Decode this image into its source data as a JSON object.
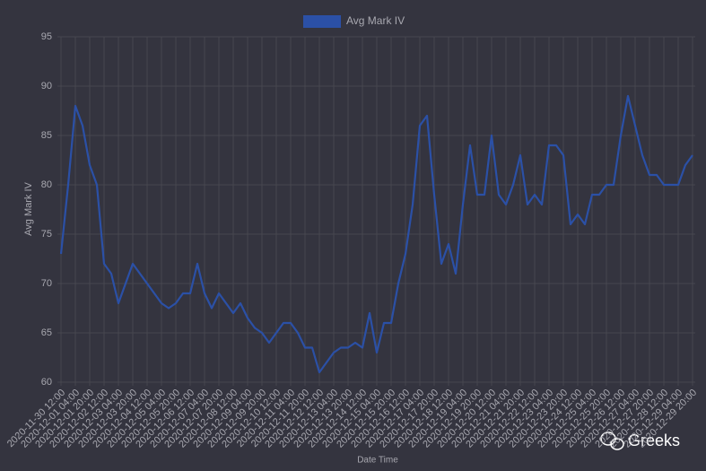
{
  "chart_data": {
    "type": "line",
    "legend_label": "Avg Mark IV",
    "ylabel": "Avg Mark IV",
    "xlabel": "Date Time",
    "watermark": "Greeks",
    "color": "#2b50a6",
    "grid": true,
    "legend": "top",
    "ylim": [
      60,
      95
    ],
    "yticks": [
      60,
      65,
      70,
      75,
      80,
      85,
      90,
      95
    ],
    "categories": [
      "2020-11-30 12:00",
      null,
      "2020-12-01 04:00",
      null,
      "2020-12-01 20:00",
      null,
      "2020-12-02 12:00",
      null,
      "2020-12-03 04:00",
      null,
      "2020-12-03 20:00",
      null,
      "2020-12-04 12:00",
      null,
      "2020-12-05 04:00",
      null,
      "2020-12-05 20:00",
      null,
      "2020-12-06 12:00",
      null,
      "2020-12-07 04:00",
      null,
      "2020-12-07 20:00",
      null,
      "2020-12-08 12:00",
      null,
      "2020-12-09 04:00",
      null,
      "2020-12-09 20:00",
      null,
      "2020-12-10 12:00",
      null,
      "2020-12-11 04:00",
      null,
      "2020-12-11 20:00",
      null,
      "2020-12-12 12:00",
      null,
      "2020-12-13 04:00",
      null,
      "2020-12-13 20:00",
      null,
      "2020-12-14 12:00",
      null,
      "2020-12-15 04:00",
      null,
      "2020-12-15 20:00",
      null,
      "2020-12-16 12:00",
      null,
      "2020-12-17 04:00",
      null,
      "2020-12-17 20:00",
      null,
      "2020-12-18 12:00",
      null,
      "2020-12-19 04:00",
      null,
      "2020-12-19 20:00",
      null,
      "2020-12-20 12:00",
      null,
      "2020-12-21 04:00",
      null,
      "2020-12-21 20:00",
      null,
      "2020-12-22 12:00",
      null,
      "2020-12-23 04:00",
      null,
      "2020-12-23 20:00",
      null,
      "2020-12-24 12:00",
      null,
      "2020-12-25 04:00",
      null,
      "2020-12-25 20:00",
      null,
      "2020-12-26 12:00",
      null,
      "2020-12-27 04:00",
      null,
      "2020-12-27 20:00",
      null,
      "2020-12-28 12:00",
      null,
      "2020-12-29 04:00",
      null,
      "2020-12-29 20:00"
    ],
    "values": [
      73,
      80,
      88,
      86,
      82,
      80,
      72,
      71,
      68,
      70,
      72,
      71,
      70,
      69,
      68,
      67.5,
      68,
      69,
      69,
      72,
      69,
      67.5,
      69,
      68,
      67,
      68,
      66.5,
      65.5,
      65,
      64,
      65,
      66,
      66,
      65,
      63.5,
      63.5,
      61,
      62,
      63,
      63.5,
      63.5,
      64,
      63.5,
      67,
      63,
      66,
      66,
      70,
      73,
      78,
      86,
      87,
      79,
      72,
      74,
      71,
      78,
      84,
      79,
      79,
      85,
      79,
      78,
      80,
      83,
      78,
      79,
      78,
      84,
      84,
      83,
      76,
      77,
      76,
      79,
      79,
      80,
      80,
      85,
      89,
      86,
      83,
      81,
      81,
      80,
      80,
      80,
      82,
      83
    ]
  }
}
